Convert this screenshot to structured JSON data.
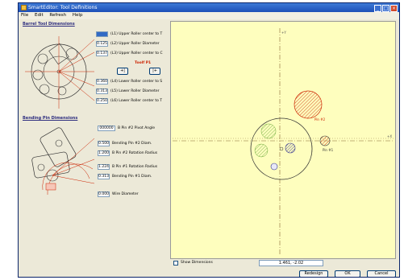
{
  "window": {
    "title": "SmartEditor: Tool Definitions"
  },
  "menu": [
    "File",
    "Edit",
    "Refresh",
    "Help"
  ],
  "barrel": {
    "title": "Barrel Tool Dimensions",
    "fields": [
      {
        "value": "",
        "label": "(L1) Upper Roller center to T"
      },
      {
        "value": "0.125",
        "label": "(L2) Upper Roller Diameter"
      },
      {
        "value": "0.137",
        "label": "(L3) Upper Roller center to C"
      },
      {
        "value": "0.360",
        "label": "(L4) Lower Roller center to S"
      },
      {
        "value": "0.313",
        "label": "(L5) Lower Roller Diameter"
      },
      {
        "value": "0.250",
        "label": "(L6) Lower Roller center to T"
      }
    ],
    "red_label": "Toolf P1",
    "spin_left": "+|",
    "spin_right": "|+"
  },
  "bending": {
    "title": "Bending Pin Dimensions",
    "fields": [
      {
        "value": "000000",
        "label": "B Pin #2 Pivot Angle"
      },
      {
        "value": "0.500",
        "label": "Bending Pin #2 Diam."
      },
      {
        "value": "1.200",
        "label": "B Pin #2 Rotation Radius"
      },
      {
        "value": "1.224",
        "label": "B Pin #1 Rotation Radius"
      },
      {
        "value": "0.313",
        "label": "Bending Pin #1 Diam."
      },
      {
        "value": "0.000",
        "label": "Wire Diameter"
      }
    ]
  },
  "canvas": {
    "pin2_label": "Pin #2",
    "pin1_label": "Pin #1",
    "y_label": "+Y",
    "x_label": "+X",
    "background": "#fefebe",
    "accent": "#cc2200"
  },
  "footer": {
    "show_dimensions": "Show Dimensions",
    "coords": "1.461, -2.02",
    "buttons": [
      "Redesign",
      "OK",
      "Cancel"
    ]
  }
}
